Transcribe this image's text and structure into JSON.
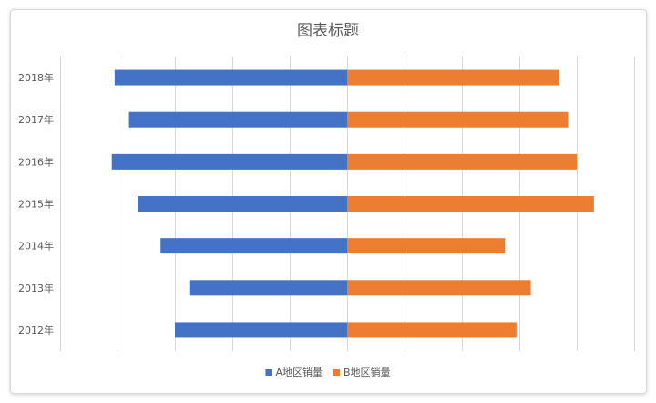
{
  "chart_data": {
    "type": "bar",
    "orientation": "horizontal",
    "layout": "butterfly",
    "title": "图表标题",
    "categories": [
      "2012年",
      "2013年",
      "2014年",
      "2015年",
      "2016年",
      "2017年",
      "2018年"
    ],
    "series": [
      {
        "name": "A地区销量",
        "color": "#4472C4",
        "direction": "left",
        "values": [
          3000,
          2750,
          3250,
          3650,
          4100,
          3800,
          4050
        ]
      },
      {
        "name": "B地区销量",
        "color": "#ED7D31",
        "direction": "right",
        "values": [
          2950,
          3200,
          2750,
          4300,
          4000,
          3850,
          3700
        ]
      }
    ],
    "xlim": [
      -5000,
      5000
    ],
    "x_tick_step": 1000,
    "grid": true,
    "x_tick_labels_shown": false,
    "legend_position": "bottom"
  }
}
